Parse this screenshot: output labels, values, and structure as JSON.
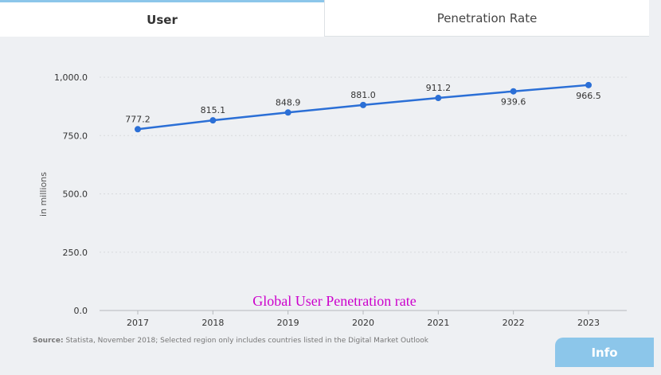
{
  "tabs": {
    "user_label": "User",
    "penetration_label": "Penetration Rate"
  },
  "annotation": "Global User Penetration rate",
  "source": {
    "label": "Source:",
    "text": "Statista, November 2018; Selected region only includes countries listed in the Digital Market Outlook"
  },
  "info_label": "Info",
  "colors": {
    "line": "#2b6fd6",
    "annotation": "#cc00cc",
    "tab_accent": "#8cc6ea"
  },
  "chart_data": {
    "type": "line",
    "title": "",
    "xlabel": "",
    "ylabel": "in millions",
    "categories": [
      "2017",
      "2018",
      "2019",
      "2020",
      "2021",
      "2022",
      "2023"
    ],
    "series": [
      {
        "name": "User",
        "values": [
          777.2,
          815.1,
          848.9,
          881.0,
          911.2,
          939.6,
          966.5
        ]
      }
    ],
    "data_labels": [
      "777.2",
      "815.1",
      "848.9",
      "881.0",
      "911.2",
      "939.6",
      "966.5"
    ],
    "yticks": [
      0,
      250,
      500,
      750,
      1000
    ],
    "ytick_labels": [
      "0.0",
      "250.0",
      "500.0",
      "750.0",
      "1,000.0"
    ],
    "ylim": [
      0,
      1000
    ],
    "grid": true
  }
}
